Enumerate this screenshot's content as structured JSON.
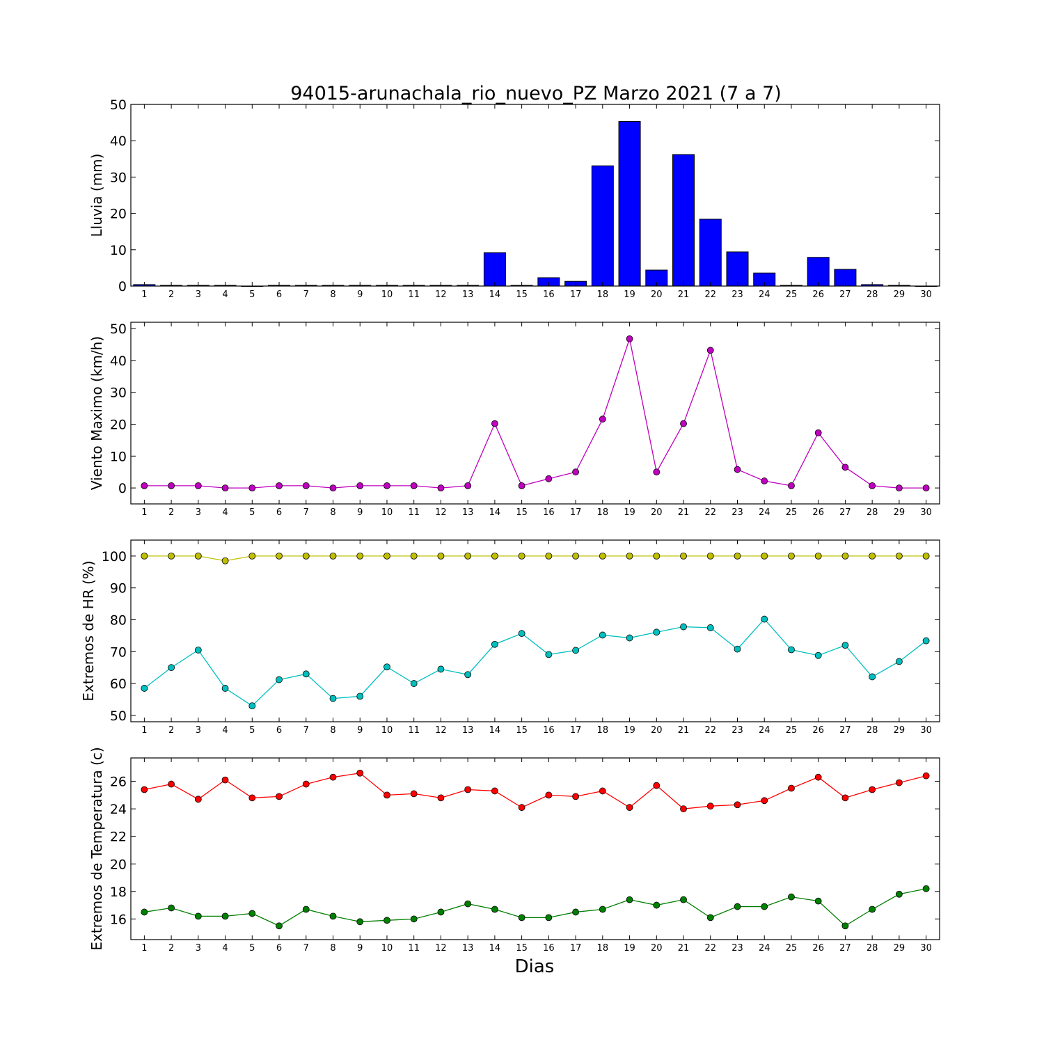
{
  "title": "94015-arunachala_rio_nuevo_PZ Marzo 2021  (7 a 7)",
  "xlabel": "Dias",
  "chart_data": [
    {
      "type": "bar",
      "ylabel": "Lluvia (mm)",
      "x": [
        1,
        2,
        3,
        4,
        5,
        6,
        7,
        8,
        9,
        10,
        11,
        12,
        13,
        14,
        15,
        16,
        17,
        18,
        19,
        20,
        21,
        22,
        23,
        24,
        25,
        26,
        27,
        28,
        29,
        30
      ],
      "ylim": [
        0,
        50
      ],
      "yticks": [
        0,
        10,
        20,
        30,
        40,
        50
      ],
      "series": [
        {
          "color": "#0000ff",
          "values": [
            0.4,
            0.2,
            0.2,
            0.2,
            0,
            0.2,
            0.2,
            0.2,
            0.2,
            0.2,
            0.2,
            0.2,
            0.2,
            9.2,
            0.2,
            2.3,
            1.3,
            33.1,
            45.3,
            4.4,
            36.2,
            18.4,
            9.4,
            3.6,
            0.2,
            7.9,
            4.6,
            0.4,
            0.2,
            0
          ]
        }
      ]
    },
    {
      "type": "line",
      "ylabel": "Viento Maximo (km/h)",
      "x": [
        1,
        2,
        3,
        4,
        5,
        6,
        7,
        8,
        9,
        10,
        11,
        12,
        13,
        14,
        15,
        16,
        17,
        18,
        19,
        20,
        21,
        22,
        23,
        24,
        25,
        26,
        27,
        28,
        29,
        30
      ],
      "ylim": [
        -5,
        52
      ],
      "yticks": [
        0,
        10,
        20,
        30,
        40,
        50
      ],
      "series": [
        {
          "color": "#bf00bf",
          "values": [
            0.7,
            0.7,
            0.7,
            0,
            0,
            0.7,
            0.7,
            0,
            0.7,
            0.7,
            0.7,
            0,
            0.7,
            20.2,
            0.7,
            2.9,
            5,
            21.6,
            46.8,
            5,
            20.2,
            43.2,
            5.8,
            2.2,
            0.7,
            17.3,
            6.5,
            0.7,
            0,
            0
          ]
        }
      ]
    },
    {
      "type": "line",
      "ylabel": "Extremos de HR (%)",
      "x": [
        1,
        2,
        3,
        4,
        5,
        6,
        7,
        8,
        9,
        10,
        11,
        12,
        13,
        14,
        15,
        16,
        17,
        18,
        19,
        20,
        21,
        22,
        23,
        24,
        25,
        26,
        27,
        28,
        29,
        30
      ],
      "ylim": [
        48,
        105
      ],
      "yticks": [
        50,
        60,
        70,
        80,
        90,
        100
      ],
      "series": [
        {
          "color": "#bfbf00",
          "values": [
            100,
            100,
            100,
            98.5,
            100,
            100,
            100,
            100,
            100,
            100,
            100,
            100,
            100,
            100,
            100,
            100,
            100,
            100,
            100,
            100,
            100,
            100,
            100,
            100,
            100,
            100,
            100,
            100,
            100,
            100
          ]
        },
        {
          "color": "#00bfbf",
          "values": [
            58.5,
            65,
            70.5,
            58.5,
            53,
            61.2,
            63,
            55.3,
            56,
            65.2,
            60,
            64.5,
            62.8,
            72.3,
            75.7,
            69.1,
            70.4,
            75.2,
            74.3,
            76.1,
            77.8,
            77.5,
            70.8,
            80.2,
            70.6,
            68.8,
            72,
            62.1,
            66.9,
            73.4
          ]
        }
      ]
    },
    {
      "type": "line",
      "ylabel": "Extremos de Temperatura (c)",
      "x": [
        1,
        2,
        3,
        4,
        5,
        6,
        7,
        8,
        9,
        10,
        11,
        12,
        13,
        14,
        15,
        16,
        17,
        18,
        19,
        20,
        21,
        22,
        23,
        24,
        25,
        26,
        27,
        28,
        29,
        30
      ],
      "ylim": [
        14.5,
        27.7
      ],
      "yticks": [
        16,
        18,
        20,
        22,
        24,
        26
      ],
      "series": [
        {
          "color": "#ff0000",
          "values": [
            25.4,
            25.8,
            24.7,
            26.1,
            24.8,
            24.9,
            25.8,
            26.3,
            26.6,
            25,
            25.1,
            24.8,
            25.4,
            25.3,
            24.1,
            25,
            24.9,
            25.3,
            24.1,
            25.7,
            24,
            24.2,
            24.3,
            24.6,
            25.5,
            26.3,
            24.8,
            25.4,
            25.9,
            26.4
          ]
        },
        {
          "color": "#008000",
          "values": [
            16.5,
            16.8,
            16.2,
            16.2,
            16.4,
            15.5,
            16.7,
            16.2,
            15.8,
            15.9,
            16,
            16.5,
            17.1,
            16.7,
            16.1,
            16.1,
            16.5,
            16.7,
            17.4,
            17,
            17.4,
            16.1,
            16.9,
            16.9,
            17.6,
            17.3,
            15.5,
            16.7,
            17.8,
            18.2
          ]
        }
      ]
    }
  ]
}
